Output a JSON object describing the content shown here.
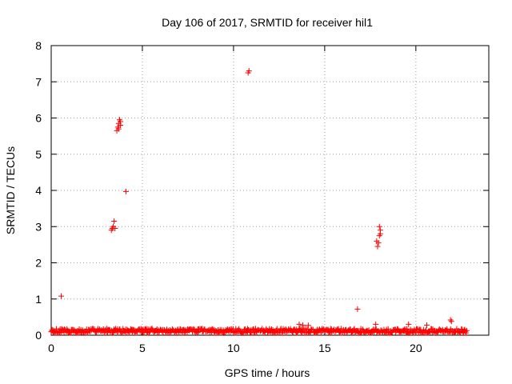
{
  "chart_data": {
    "type": "scatter",
    "title": "Day 106 of 2017, SRMTID for receiver hil1",
    "xlabel": "GPS time / hours",
    "ylabel": "SRMTID / TECUs",
    "xlim": [
      0,
      24
    ],
    "ylim": [
      0,
      8
    ],
    "xticks": [
      0,
      5,
      10,
      15,
      20
    ],
    "yticks": [
      0,
      1,
      2,
      3,
      4,
      5,
      6,
      7,
      8
    ],
    "grid": true,
    "marker": "+",
    "color": "#ff0000",
    "baseline": {
      "x_range": [
        0,
        22.8
      ],
      "typical_value": 0.12,
      "spread": 0.06,
      "count": 650
    },
    "points": [
      [
        0.55,
        1.08
      ],
      [
        3.3,
        2.9
      ],
      [
        3.35,
        2.95
      ],
      [
        3.4,
        3.0
      ],
      [
        3.45,
        3.15
      ],
      [
        3.5,
        2.95
      ],
      [
        3.6,
        5.65
      ],
      [
        3.65,
        5.75
      ],
      [
        3.7,
        5.85
      ],
      [
        3.75,
        5.95
      ],
      [
        3.8,
        5.8
      ],
      [
        3.7,
        5.7
      ],
      [
        3.8,
        5.9
      ],
      [
        4.1,
        3.97
      ],
      [
        10.8,
        7.25
      ],
      [
        10.85,
        7.3
      ],
      [
        13.6,
        0.3
      ],
      [
        13.8,
        0.28
      ],
      [
        14.1,
        0.27
      ],
      [
        16.8,
        0.72
      ],
      [
        17.8,
        0.3
      ],
      [
        17.85,
        2.6
      ],
      [
        17.9,
        2.45
      ],
      [
        17.95,
        2.55
      ],
      [
        18.0,
        2.75
      ],
      [
        18.05,
        2.9
      ],
      [
        18.0,
        3.0
      ],
      [
        18.05,
        2.8
      ],
      [
        19.6,
        0.3
      ],
      [
        20.6,
        0.28
      ],
      [
        21.9,
        0.42
      ],
      [
        21.95,
        0.38
      ]
    ]
  }
}
